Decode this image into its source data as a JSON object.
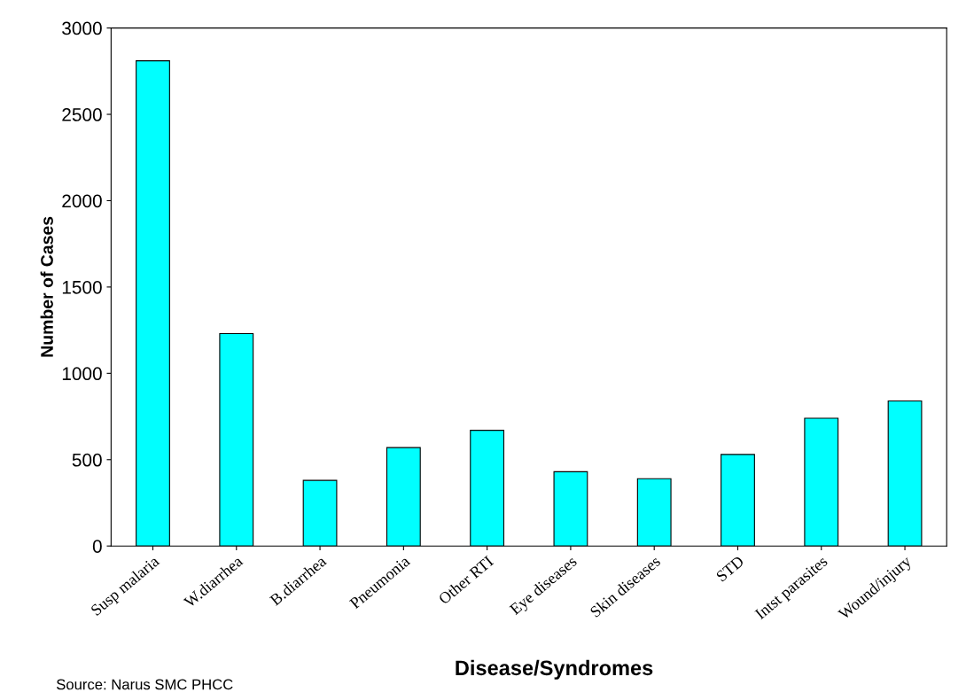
{
  "chart_data": {
    "type": "bar",
    "xlabel": "Disease/Syndromes",
    "ylabel": "Number of Cases",
    "categories": [
      "Susp malaria",
      "W.diarrhea",
      "B.diarrhea",
      "Pneumonia",
      "Other RTI",
      "Eye diseases",
      "Skin diseases",
      "STD",
      "Intst parasites",
      "Wound/injury"
    ],
    "values": [
      2810,
      1230,
      380,
      570,
      670,
      430,
      390,
      530,
      740,
      840
    ],
    "color": "#00ffff",
    "ylim": [
      0,
      3000
    ],
    "yticks": [
      0,
      500,
      1000,
      1500,
      2000,
      2500,
      3000
    ],
    "grid": false,
    "annotations": [
      "Source: Narus SMC PHCC"
    ]
  }
}
